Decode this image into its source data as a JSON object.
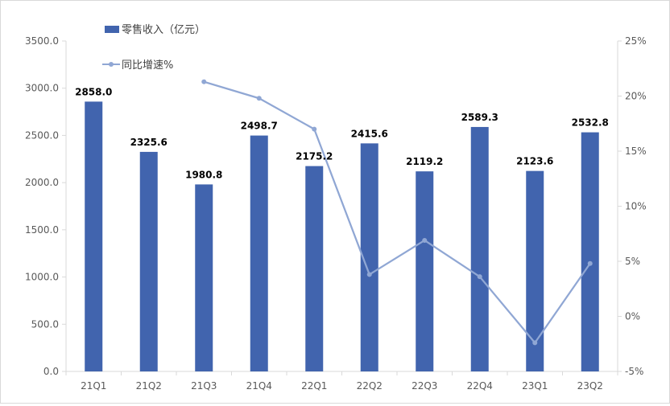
{
  "chart_data": {
    "type": "bar",
    "categories": [
      "21Q1",
      "21Q2",
      "21Q3",
      "21Q4",
      "22Q1",
      "22Q2",
      "22Q3",
      "22Q4",
      "23Q1",
      "23Q2"
    ],
    "series": [
      {
        "name": "零售收入（亿元）",
        "type": "bar",
        "axis": "left",
        "values": [
          2858.0,
          2325.6,
          1980.8,
          2498.7,
          2175.2,
          2415.6,
          2119.2,
          2589.3,
          2123.6,
          2532.8
        ],
        "labels": [
          "2858.0",
          "2325.6",
          "1980.8",
          "2498.7",
          "2175.2",
          "2415.6",
          "2119.2",
          "2589.3",
          "2123.6",
          "2532.8"
        ],
        "color": "#4164ae"
      },
      {
        "name": "同比增速%",
        "type": "line",
        "axis": "right",
        "values": [
          null,
          null,
          21.3,
          19.8,
          17.0,
          3.8,
          6.9,
          3.6,
          -2.4,
          4.8
        ],
        "color": "#90a7d4"
      }
    ],
    "y_left": {
      "min": 0,
      "max": 3500,
      "step": 500,
      "tick_labels": [
        "0.0",
        "500.0",
        "1000.0",
        "1500.0",
        "2000.0",
        "2500.0",
        "3000.0",
        "3500.0"
      ]
    },
    "y_right": {
      "min": -5,
      "max": 25,
      "step": 5,
      "tick_labels": [
        "-5%",
        "0%",
        "5%",
        "10%",
        "15%",
        "20%",
        "25%"
      ]
    },
    "legend": [
      "零售收入（亿元）",
      "同比增速%"
    ],
    "legend_position": "top-left",
    "grid": false
  }
}
